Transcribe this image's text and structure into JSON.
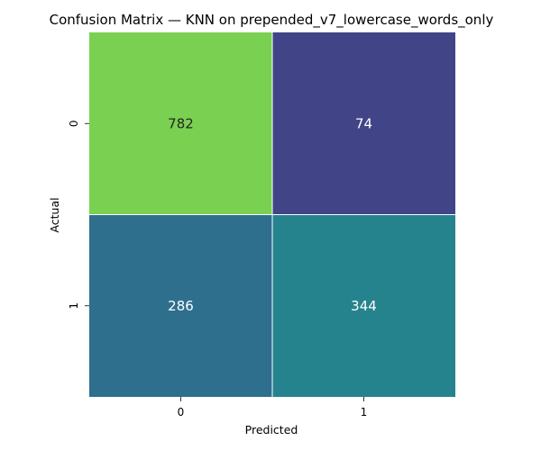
{
  "chart_data": {
    "type": "heatmap",
    "title": "Confusion Matrix — KNN on prepended_v7_lowercase_words_only",
    "xlabel": "Predicted",
    "ylabel": "Actual",
    "x_categories": [
      "0",
      "1"
    ],
    "y_categories": [
      "0",
      "1"
    ],
    "values": [
      [
        782,
        74
      ],
      [
        286,
        344
      ]
    ],
    "colormap": "viridis",
    "colorbar": false,
    "cell_colors": [
      [
        "#7ad151",
        "#414487"
      ],
      [
        "#2e6f8e",
        "#25838e"
      ]
    ],
    "cell_text_colors": [
      [
        "#262626",
        "#ffffff"
      ],
      [
        "#ffffff",
        "#ffffff"
      ]
    ],
    "grid_line_color": "#ffffff"
  }
}
